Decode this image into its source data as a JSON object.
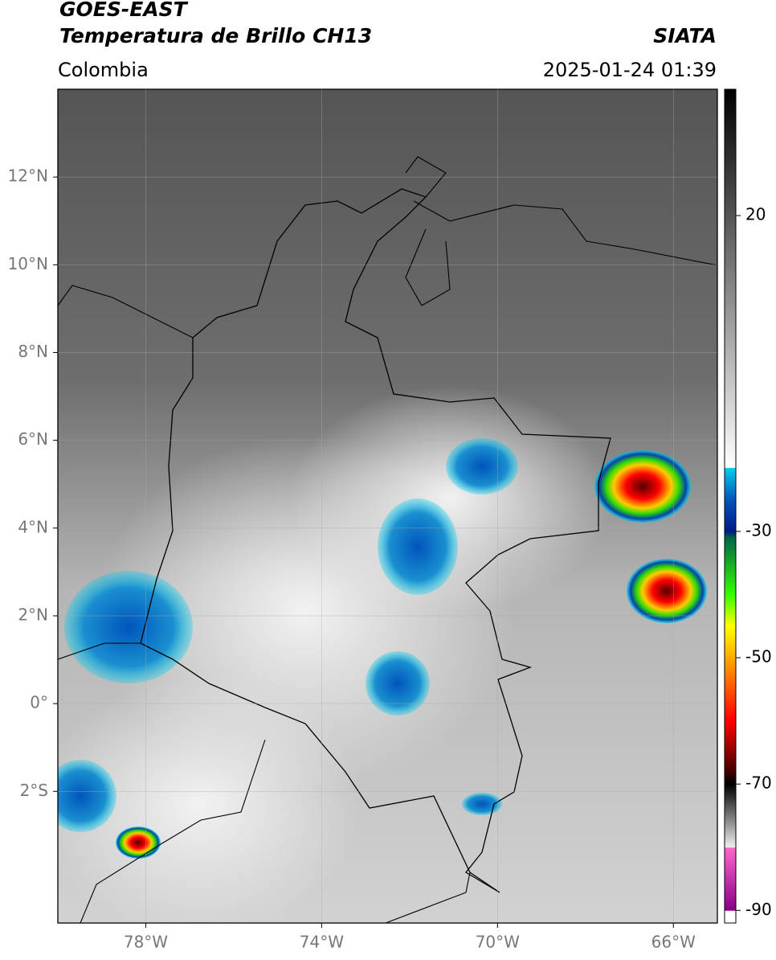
{
  "header": {
    "satellite": "GOES-EAST",
    "product": "Temperatura de Brillo CH13",
    "source": "SIATA",
    "region": "Colombia",
    "datetime": "2025-01-24 01:39"
  },
  "map": {
    "lonlim": [
      -80,
      -65
    ],
    "latlim": [
      -5,
      14
    ],
    "lonticks": [
      {
        "value": -78,
        "label": "78°W"
      },
      {
        "value": -74,
        "label": "74°W"
      },
      {
        "value": -70,
        "label": "70°W"
      },
      {
        "value": -66,
        "label": "66°W"
      }
    ],
    "latticks": [
      {
        "value": 12,
        "label": "12°N"
      },
      {
        "value": 10,
        "label": "10°N"
      },
      {
        "value": 8,
        "label": "8°N"
      },
      {
        "value": 6,
        "label": "6°N"
      },
      {
        "value": 4,
        "label": "4°N"
      },
      {
        "value": 2,
        "label": "2°N"
      },
      {
        "value": 0,
        "label": "0°"
      },
      {
        "value": -2,
        "label": "2°S"
      }
    ],
    "grid": true
  },
  "colorbar": {
    "lim": [
      -92,
      40
    ],
    "ticks": [
      20,
      -30,
      -50,
      -70,
      -90
    ],
    "colormap": [
      [
        40,
        "#000000"
      ],
      [
        -19.9,
        "#ffffff"
      ],
      [
        -20,
        "#00ccee"
      ],
      [
        -25,
        "#0055bb"
      ],
      [
        -30,
        "#001a88"
      ],
      [
        -31,
        "#006644"
      ],
      [
        -40,
        "#33ff00"
      ],
      [
        -45,
        "#ffff00"
      ],
      [
        -50,
        "#ffaa00"
      ],
      [
        -60,
        "#ff0000"
      ],
      [
        -68,
        "#440000"
      ],
      [
        -70,
        "#000000"
      ],
      [
        -80,
        "#eeeeee"
      ],
      [
        -80.1,
        "#ff66cc"
      ],
      [
        -90,
        "#880088"
      ],
      [
        -90.1,
        "#ffffff"
      ],
      [
        -92,
        "#ffffff"
      ]
    ]
  }
}
